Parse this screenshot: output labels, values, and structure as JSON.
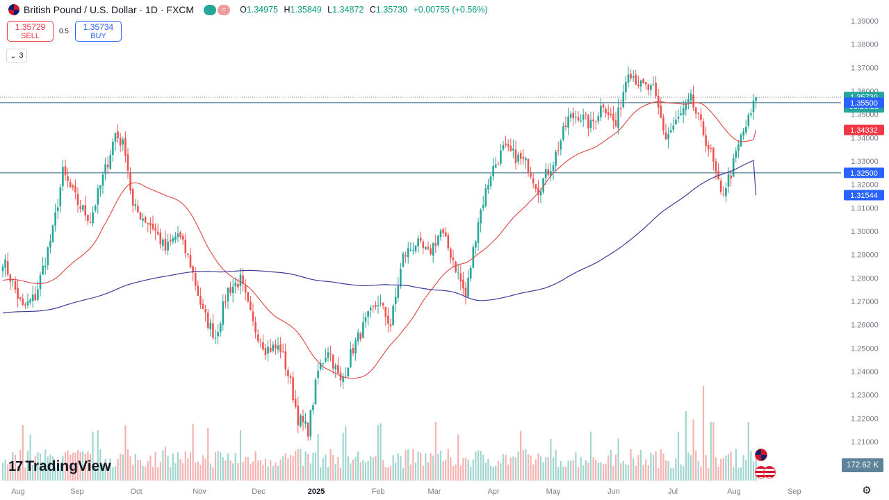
{
  "header": {
    "title": "British Pound / U.S. Dollar · 1D · FXCM",
    "icon": "gbp-usd-flag-icon",
    "pill_a": "",
    "pill_b": "≈",
    "ohlc": {
      "o_label": "O",
      "o": "1.34975",
      "h_label": "H",
      "h": "1.35849",
      "l_label": "L",
      "l": "1.34872",
      "c_label": "C",
      "c": "1.35730",
      "change": "+0.00755 (+0.56%)"
    }
  },
  "trade": {
    "sell_price": "1.35729",
    "sell_label": "SELL",
    "spread": "0.5",
    "buy_price": "1.35734",
    "buy_label": "BUY"
  },
  "indicators_toggle": {
    "icon": "chevron-down-icon",
    "count": "3"
  },
  "branding": {
    "logo_mark": "17",
    "logo_text": "TradingView"
  },
  "volume_badge": "172.62 K",
  "colors": {
    "up": "#26a69a",
    "down": "#ef5350",
    "ma50": "#e0514f",
    "ma200": "#3e3a9b",
    "hline": "#2a5f7a",
    "accent": "#2962ff"
  },
  "chart_data": {
    "type": "candlestick",
    "symbol": "GBPUSD",
    "timeframe": "1D",
    "y_axis": {
      "min": 1.2,
      "max": 1.395,
      "ticks": [
        "1.39000",
        "1.38000",
        "1.37000",
        "1.36000",
        "1.35000",
        "1.34000",
        "1.33000",
        "1.32000",
        "1.31000",
        "1.30000",
        "1.29000",
        "1.28000",
        "1.27000",
        "1.26000",
        "1.25000",
        "1.24000",
        "1.23000",
        "1.22000",
        "1.21000"
      ]
    },
    "x_axis": {
      "labels": [
        "Aug",
        "Sep",
        "Oct",
        "Nov",
        "Dec",
        "2025",
        "Feb",
        "Mar",
        "Apr",
        "May",
        "Jun",
        "Jul",
        "Aug",
        "Sep"
      ]
    },
    "price_labels": [
      {
        "text": "1.35730",
        "sub": "05:26:23",
        "value": 1.3573,
        "color": "#26a69a"
      },
      {
        "text": "1.35500",
        "value": 1.355,
        "color": "#2962ff"
      },
      {
        "text": "1.34332",
        "value": 1.34332,
        "color": "#f23645"
      },
      {
        "text": "1.32500",
        "value": 1.325,
        "color": "#2962ff"
      },
      {
        "text": "1.31544",
        "value": 1.31544,
        "color": "#2962ff"
      }
    ],
    "horizontal_lines": [
      1.355,
      1.325
    ],
    "current_price": 1.3573,
    "closes_anchors": [
      [
        0,
        1.288
      ],
      [
        8,
        1.267
      ],
      [
        13,
        1.272
      ],
      [
        20,
        1.3
      ],
      [
        24,
        1.325
      ],
      [
        30,
        1.312
      ],
      [
        35,
        1.305
      ],
      [
        42,
        1.33
      ],
      [
        45,
        1.342
      ],
      [
        49,
        1.335
      ],
      [
        52,
        1.31
      ],
      [
        60,
        1.302
      ],
      [
        65,
        1.292
      ],
      [
        70,
        1.299
      ],
      [
        75,
        1.286
      ],
      [
        80,
        1.265
      ],
      [
        85,
        1.255
      ],
      [
        90,
        1.275
      ],
      [
        95,
        1.279
      ],
      [
        100,
        1.26
      ],
      [
        105,
        1.25
      ],
      [
        111,
        1.25
      ],
      [
        115,
        1.235
      ],
      [
        118,
        1.22
      ],
      [
        122,
        1.215
      ],
      [
        126,
        1.24
      ],
      [
        130,
        1.25
      ],
      [
        135,
        1.235
      ],
      [
        140,
        1.25
      ],
      [
        145,
        1.261
      ],
      [
        150,
        1.27
      ],
      [
        155,
        1.26
      ],
      [
        160,
        1.289
      ],
      [
        165,
        1.295
      ],
      [
        170,
        1.29
      ],
      [
        175,
        1.3
      ],
      [
        180,
        1.288
      ],
      [
        185,
        1.272
      ],
      [
        190,
        1.305
      ],
      [
        195,
        1.325
      ],
      [
        200,
        1.335
      ],
      [
        205,
        1.332
      ],
      [
        210,
        1.328
      ],
      [
        214,
        1.318
      ],
      [
        220,
        1.33
      ],
      [
        226,
        1.348
      ],
      [
        230,
        1.35
      ],
      [
        235,
        1.345
      ],
      [
        240,
        1.355
      ],
      [
        245,
        1.345
      ],
      [
        250,
        1.37
      ],
      [
        255,
        1.362
      ],
      [
        260,
        1.36
      ],
      [
        265,
        1.34
      ],
      [
        270,
        1.348
      ],
      [
        275,
        1.356
      ],
      [
        280,
        1.342
      ],
      [
        283,
        1.333
      ],
      [
        287,
        1.315
      ],
      [
        291,
        1.325
      ],
      [
        295,
        1.34
      ],
      [
        299,
        1.35
      ],
      [
        301,
        1.3573
      ]
    ],
    "volume_recent": 172.62,
    "ma50": {
      "start": 1.279,
      "end": 1.3433
    },
    "ma200": {
      "start": 1.265,
      "end": 1.3154
    }
  }
}
